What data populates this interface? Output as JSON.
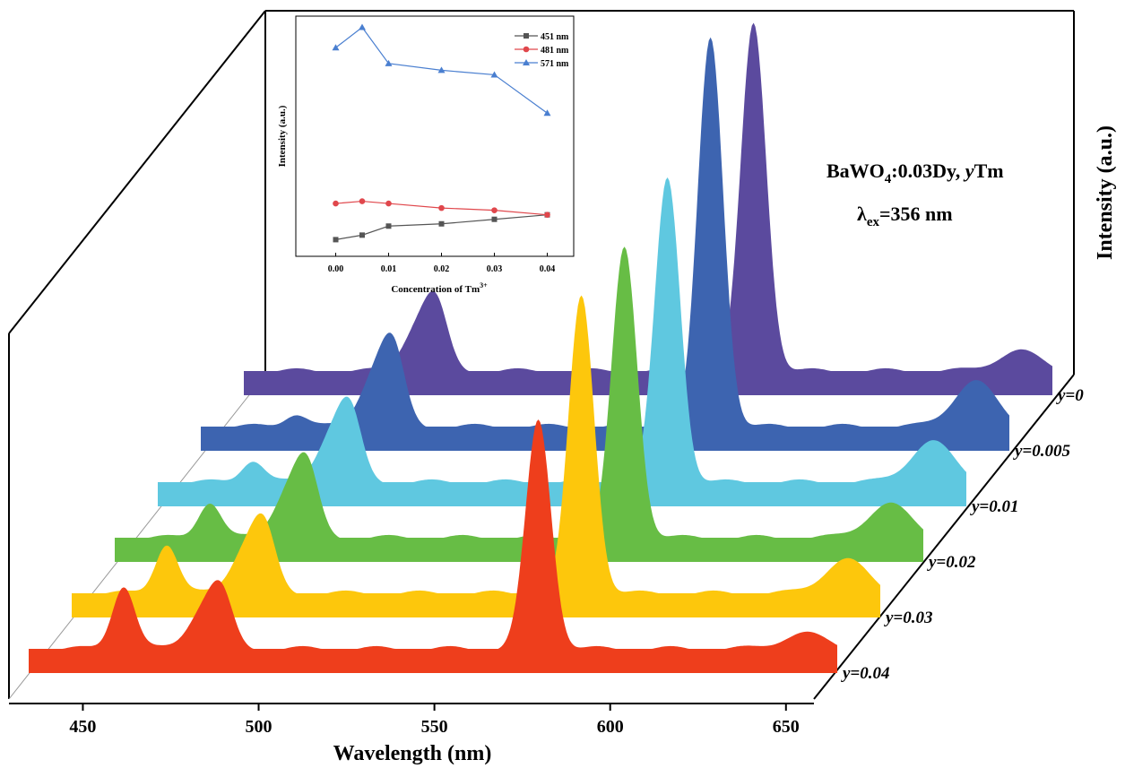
{
  "chart_data": [
    {
      "type": "area",
      "xlabel": "Wavelength (nm)",
      "ylabel": "Intensity (a.u.)",
      "xlim": [
        430,
        660
      ],
      "x_ticks": [
        450,
        500,
        550,
        600,
        650
      ],
      "x_tick_labels": [
        "450",
        "500",
        "550",
        "600",
        "650"
      ],
      "annotation_lines": [
        "BaWO",
        "4",
        ":0.03Dy, ",
        "y",
        "Tm",
        "λ",
        "ex",
        "=356 nm"
      ],
      "series": [
        {
          "name": "y=0.04",
          "color": "#ee3e1c",
          "peaks": [
            {
              "x": 457,
              "h": 0.28
            },
            {
              "x": 484,
              "h": 0.24
            },
            {
              "x": 575,
              "h": 1.0
            }
          ],
          "tail": 0.07
        },
        {
          "name": "y=0.03",
          "color": "#fdc70c",
          "peaks": [
            {
              "x": 457,
              "h": 0.22
            },
            {
              "x": 484,
              "h": 0.28
            },
            {
              "x": 575,
              "h": 1.3
            }
          ],
          "tail": 0.15
        },
        {
          "name": "y=0.02",
          "color": "#67bd45",
          "peaks": [
            {
              "x": 457,
              "h": 0.16
            },
            {
              "x": 484,
              "h": 0.3
            },
            {
              "x": 575,
              "h": 1.27
            }
          ],
          "tail": 0.15
        },
        {
          "name": "y=0.01",
          "color": "#5fc8e0",
          "peaks": [
            {
              "x": 457,
              "h": 0.1
            },
            {
              "x": 484,
              "h": 0.3
            },
            {
              "x": 575,
              "h": 1.33
            }
          ],
          "tail": 0.18
        },
        {
          "name": "y=0.005",
          "color": "#3d64b0",
          "peaks": [
            {
              "x": 457,
              "h": 0.06
            },
            {
              "x": 484,
              "h": 0.33
            },
            {
              "x": 575,
              "h": 1.7
            }
          ],
          "tail": 0.2
        },
        {
          "name": "y=0",
          "color": "#5b4a9e",
          "peaks": [
            {
              "x": 457,
              "h": 0.0
            },
            {
              "x": 484,
              "h": 0.28
            },
            {
              "x": 575,
              "h": 1.52
            }
          ],
          "tail": 0.09
        }
      ]
    },
    {
      "type": "line",
      "title": "",
      "xlabel": "Concentration of Tm",
      "xlabel_sup": "3+",
      "ylabel": "Intensity (a.u.)",
      "x": [
        0.0,
        0.005,
        0.01,
        0.02,
        0.03,
        0.04
      ],
      "x_tick_labels": [
        "0.00",
        "0.01",
        "0.02",
        "0.03",
        "0.04"
      ],
      "x_tick_values": [
        0.0,
        0.01,
        0.02,
        0.03,
        0.04
      ],
      "xlim": [
        -0.005,
        0.045
      ],
      "ylim": [
        0,
        100
      ],
      "legend_position": "top-right",
      "series": [
        {
          "name": "451 nm",
          "color": "#555555",
          "marker": "square",
          "values": [
            5,
            7,
            11,
            12,
            14,
            16
          ]
        },
        {
          "name": "481 nm",
          "color": "#e0474c",
          "marker": "circle",
          "values": [
            21,
            22,
            21,
            19,
            18,
            16
          ]
        },
        {
          "name": "571 nm",
          "color": "#4a7fd0",
          "marker": "triangle",
          "values": [
            90,
            99,
            83,
            80,
            78,
            61
          ]
        }
      ]
    }
  ]
}
